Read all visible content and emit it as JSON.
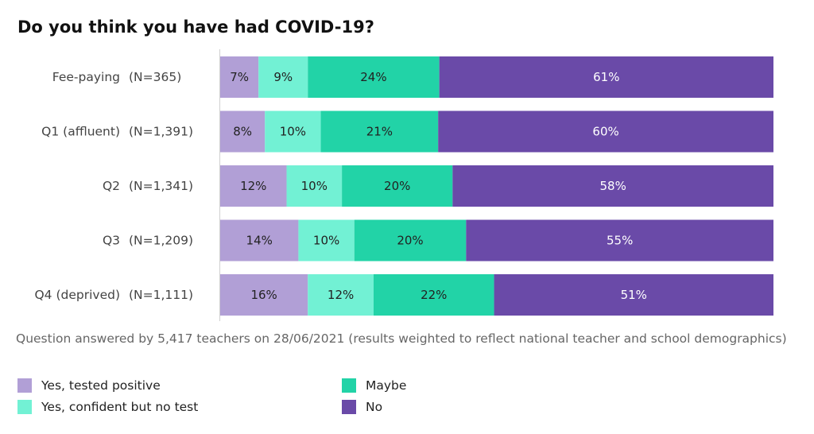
{
  "title": "Do you think you have had COVID-19?",
  "note": "Question answered by 5,417 teachers on 28/06/2021 (results weighted to reflect national teacher and school demographics)",
  "colors": {
    "Yes, tested positive": "#b19fd6",
    "Yes, confident but no test": "#72f1d4",
    "Maybe": "#22d3a7",
    "No": "#6a4aa8"
  },
  "chart_data": {
    "type": "bar",
    "orientation": "horizontal",
    "stacked": true,
    "categories": [
      "Fee-paying",
      "Q1 (affluent)",
      "Q2",
      "Q3",
      "Q4 (deprived)"
    ],
    "sample_sizes": [
      "(N=365)",
      "(N=1,391)",
      "(N=1,341)",
      "(N=1,209)",
      "(N=1,111)"
    ],
    "series": [
      {
        "name": "Yes, tested positive",
        "values": [
          7,
          8,
          12,
          14,
          16
        ],
        "labels": [
          "7%",
          "8%",
          "12%",
          "14%",
          "16%"
        ]
      },
      {
        "name": "Yes, confident but no test",
        "values": [
          9,
          10,
          10,
          10,
          12
        ],
        "labels": [
          "9%",
          "10%",
          "10%",
          "10%",
          "12%"
        ]
      },
      {
        "name": "Maybe",
        "values": [
          24,
          21,
          20,
          20,
          22
        ],
        "labels": [
          "24%",
          "21%",
          "20%",
          "20%",
          "22%"
        ]
      },
      {
        "name": "No",
        "values": [
          61,
          60,
          58,
          55,
          51
        ],
        "labels": [
          "61%",
          "60%",
          "58%",
          "55%",
          "51%"
        ]
      }
    ],
    "legend_placement": "bottom",
    "grid": false
  }
}
